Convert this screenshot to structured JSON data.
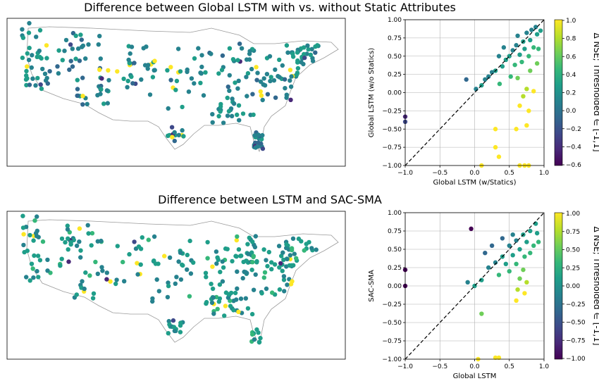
{
  "palette": [
    "#440154",
    "#482878",
    "#3e4989",
    "#31688e",
    "#26828e",
    "#1f9e89",
    "#35b779",
    "#6ece58",
    "#b5de2b",
    "#fde725"
  ],
  "panels": [
    {
      "title": "Difference between Global LSTM with vs. without Static Attributes",
      "colorbar_label": "Δ NSE; Thresholded ∈ [-1,1]",
      "cbar_ticks": [
        "1.0",
        "0.8",
        "0.6",
        "0.4",
        "0.2",
        "0.0",
        "−0.2",
        "−0.4",
        "−0.6"
      ],
      "map_seed": 11,
      "chart_data": {
        "type": "scatter",
        "xlabel": "Global LSTM (w/Statics)",
        "ylabel": "Global LSTM (w/o Statics)",
        "xlim": [
          -1,
          1
        ],
        "ylim": [
          -1,
          1
        ],
        "xticks": [
          "−1.0",
          "−0.5",
          "0.0",
          "0.5",
          "1.0"
        ],
        "yticks": [
          "1.00",
          "0.75",
          "0.50",
          "0.25",
          "0.00",
          "−0.25",
          "−0.50",
          "−0.75",
          "−1.00"
        ],
        "grid": true,
        "reference_line": "y = x (dashed)",
        "points": [
          {
            "x": 0.88,
            "y": 0.9
          },
          {
            "x": 0.82,
            "y": 0.86
          },
          {
            "x": 0.75,
            "y": 0.82
          },
          {
            "x": 0.62,
            "y": 0.78
          },
          {
            "x": 0.7,
            "y": 0.7
          },
          {
            "x": 0.8,
            "y": 0.72
          },
          {
            "x": 0.9,
            "y": 0.8
          },
          {
            "x": 0.6,
            "y": 0.65
          },
          {
            "x": 0.55,
            "y": 0.58
          },
          {
            "x": 0.72,
            "y": 0.6
          },
          {
            "x": 0.85,
            "y": 0.62
          },
          {
            "x": 0.65,
            "y": 0.52
          },
          {
            "x": 0.5,
            "y": 0.5
          },
          {
            "x": 0.45,
            "y": 0.45
          },
          {
            "x": 0.78,
            "y": 0.5
          },
          {
            "x": 0.68,
            "y": 0.42
          },
          {
            "x": 0.58,
            "y": 0.38
          },
          {
            "x": 0.4,
            "y": 0.36
          },
          {
            "x": 0.3,
            "y": 0.3
          },
          {
            "x": 0.25,
            "y": 0.28
          },
          {
            "x": 0.2,
            "y": 0.22
          },
          {
            "x": 0.15,
            "y": 0.18
          },
          {
            "x": 0.1,
            "y": 0.1
          },
          {
            "x": 0.52,
            "y": 0.22
          },
          {
            "x": 0.62,
            "y": 0.2
          },
          {
            "x": 0.8,
            "y": 0.3
          },
          {
            "x": 0.9,
            "y": 0.4
          },
          {
            "x": 0.36,
            "y": 0.12
          },
          {
            "x": -0.12,
            "y": 0.18
          },
          {
            "x": 0.02,
            "y": 0.05
          },
          {
            "x": 0.75,
            "y": 0.05
          },
          {
            "x": 0.85,
            "y": 0.02
          },
          {
            "x": 0.7,
            "y": -0.05
          },
          {
            "x": 0.65,
            "y": -0.18
          },
          {
            "x": 0.78,
            "y": -0.25
          },
          {
            "x": 0.3,
            "y": -0.5
          },
          {
            "x": 0.6,
            "y": -0.5
          },
          {
            "x": 0.75,
            "y": -0.45
          },
          {
            "x": 0.3,
            "y": -0.75
          },
          {
            "x": 0.35,
            "y": -0.88
          },
          {
            "x": 0.1,
            "y": -1.0
          },
          {
            "x": 0.65,
            "y": -1.0
          },
          {
            "x": 0.72,
            "y": -1.0
          },
          {
            "x": 0.78,
            "y": -1.0
          },
          {
            "x": -1.0,
            "y": -0.33
          },
          {
            "x": -1.0,
            "y": -0.4
          },
          {
            "x": 0.95,
            "y": 0.85
          },
          {
            "x": 0.92,
            "y": 0.6
          },
          {
            "x": 0.42,
            "y": 0.62
          },
          {
            "x": 0.35,
            "y": 0.5
          }
        ]
      }
    },
    {
      "title": "Difference between LSTM and SAC-SMA",
      "colorbar_label": "Δ NSE; Thresholded ∈ [-1,1]",
      "cbar_ticks": [
        "1.00",
        "0.75",
        "0.50",
        "0.25",
        "0.00",
        "−0.25",
        "−0.50",
        "−0.75",
        "−1.00"
      ],
      "map_seed": 29,
      "chart_data": {
        "type": "scatter",
        "xlabel": "Global LSTM",
        "ylabel": "SAC-SMA",
        "xlim": [
          -1,
          1
        ],
        "ylim": [
          -1,
          1
        ],
        "xticks": [
          "−1.0",
          "−0.5",
          "0.0",
          "0.5",
          "1.0"
        ],
        "yticks": [
          "1.00",
          "0.75",
          "0.50",
          "0.25",
          "0.00",
          "−0.25",
          "−0.50",
          "−0.75",
          "−1.00"
        ],
        "grid": true,
        "reference_line": "y = x (dashed)",
        "points": [
          {
            "x": 0.88,
            "y": 0.85
          },
          {
            "x": 0.8,
            "y": 0.75
          },
          {
            "x": 0.7,
            "y": 0.7
          },
          {
            "x": 0.6,
            "y": 0.62
          },
          {
            "x": 0.75,
            "y": 0.6
          },
          {
            "x": 0.85,
            "y": 0.55
          },
          {
            "x": 0.5,
            "y": 0.55
          },
          {
            "x": 0.65,
            "y": 0.5
          },
          {
            "x": 0.55,
            "y": 0.42
          },
          {
            "x": 0.72,
            "y": 0.4
          },
          {
            "x": 0.8,
            "y": 0.45
          },
          {
            "x": 0.4,
            "y": 0.4
          },
          {
            "x": 0.3,
            "y": 0.32
          },
          {
            "x": 0.2,
            "y": 0.25
          },
          {
            "x": 0.6,
            "y": 0.3
          },
          {
            "x": 0.7,
            "y": 0.22
          },
          {
            "x": 0.5,
            "y": 0.2
          },
          {
            "x": 0.35,
            "y": 0.15
          },
          {
            "x": 0.1,
            "y": 0.08
          },
          {
            "x": -0.1,
            "y": 0.05
          },
          {
            "x": 0.0,
            "y": 0.0
          },
          {
            "x": 0.65,
            "y": 0.1
          },
          {
            "x": 0.75,
            "y": 0.05
          },
          {
            "x": 0.72,
            "y": -0.1
          },
          {
            "x": 0.62,
            "y": -0.05
          },
          {
            "x": 0.6,
            "y": -0.2
          },
          {
            "x": 0.1,
            "y": -0.38
          },
          {
            "x": 0.3,
            "y": -0.98
          },
          {
            "x": 0.35,
            "y": -0.98
          },
          {
            "x": 0.05,
            "y": -1.0
          },
          {
            "x": -0.05,
            "y": 0.78
          },
          {
            "x": 0.4,
            "y": 0.65
          },
          {
            "x": -1.0,
            "y": 0.22
          },
          {
            "x": -1.0,
            "y": 0.0
          },
          {
            "x": 0.9,
            "y": 0.72
          },
          {
            "x": 0.92,
            "y": 0.6
          },
          {
            "x": 0.55,
            "y": 0.7
          },
          {
            "x": 0.25,
            "y": 0.55
          },
          {
            "x": 0.15,
            "y": 0.45
          },
          {
            "x": 0.45,
            "y": 0.3
          }
        ]
      }
    }
  ]
}
